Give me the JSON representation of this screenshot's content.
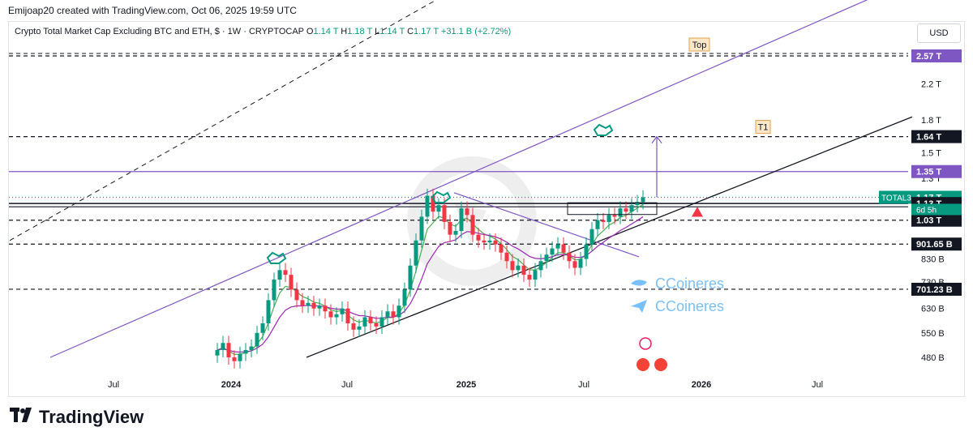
{
  "header": {
    "creator_line": "Emijoap20 created with TradingView.com, Oct 06, 2025 19:59 UTC"
  },
  "legend": {
    "title": "Crypto Total Market Cap Excluding BTC and ETH, $ · 1W · CRYPTOCAP",
    "o_label": "O",
    "o_value": "1.14 T",
    "h_label": "H",
    "h_value": "1.18 T",
    "l_label": "L",
    "l_value": "1.14 T",
    "c_label": "C",
    "c_value": "1.17 T",
    "change": "+31.1 B (+2.72%)"
  },
  "currency": "USD",
  "watermark": {
    "social_1": "CCoineres",
    "social_2": "CCoineres"
  },
  "branding": {
    "logo_text": "TradingView"
  },
  "colors": {
    "up": "#089981",
    "down": "#f23645",
    "channel": "#7e57c2",
    "ema_fast": "#4caf50",
    "ema_slow": "#9c27b0",
    "level": "#131722",
    "label_purple": "#7e57c2",
    "label_black": "#131722",
    "label_green": "#089981"
  },
  "chart_data": {
    "type": "candlestick",
    "symbol": "TOTAL3",
    "timeframe": "1W",
    "y_scale": "log",
    "y_ticks": [
      "2.2 T",
      "1.8 T",
      "1.5 T",
      "1.3 T",
      "830 B",
      "730 B",
      "630 B",
      "550 B",
      "480 B"
    ],
    "x_ticks": [
      "Jul",
      "2024",
      "Jul",
      "2025",
      "Jul",
      "2026",
      "Jul"
    ],
    "price_labels": [
      {
        "text": "2.57 T",
        "value": 2.57,
        "style": "purple"
      },
      {
        "text": "1.64 T",
        "value": 1.64,
        "style": "black"
      },
      {
        "text": "1.35 T",
        "value": 1.35,
        "style": "purple"
      },
      {
        "text": "1.17 T",
        "value": 1.17,
        "style": "green"
      },
      {
        "text": "1.13 T",
        "value": 1.13,
        "style": "black"
      },
      {
        "text": "1.03 T",
        "value": 1.03,
        "style": "black"
      },
      {
        "text": "901.65 B",
        "value": 0.90165,
        "style": "black"
      },
      {
        "text": "701.23 B",
        "value": 0.70123,
        "style": "black"
      }
    ],
    "last_price_tag": {
      "symbol": "TOTAL3",
      "countdown": "6d 5h"
    },
    "horizontal_levels": [
      {
        "value": 2.57,
        "style": "dashed"
      },
      {
        "value": 1.64,
        "style": "dashed"
      },
      {
        "value": 1.35,
        "style": "solid-purple"
      },
      {
        "value": 1.17,
        "style": "dotted-green"
      },
      {
        "value": 1.13,
        "style": "solid-double"
      },
      {
        "value": 1.03,
        "style": "dashed"
      },
      {
        "value": 0.90165,
        "style": "dashed"
      },
      {
        "value": 0.70123,
        "style": "dashed"
      }
    ],
    "annotations": [
      {
        "text": "Top",
        "value": 2.57
      },
      {
        "text": "T1",
        "value": 1.64
      }
    ],
    "candles_close": [
      0.5,
      0.52,
      0.48,
      0.47,
      0.49,
      0.5,
      0.51,
      0.55,
      0.58,
      0.66,
      0.74,
      0.78,
      0.76,
      0.7,
      0.66,
      0.64,
      0.65,
      0.63,
      0.64,
      0.62,
      0.6,
      0.61,
      0.63,
      0.58,
      0.56,
      0.57,
      0.6,
      0.58,
      0.57,
      0.6,
      0.62,
      0.6,
      0.64,
      0.7,
      0.8,
      0.92,
      1.05,
      1.18,
      1.08,
      1.12,
      1.02,
      0.95,
      0.97,
      1.1,
      1.06,
      0.95,
      0.92,
      0.91,
      0.92,
      0.9,
      0.86,
      0.82,
      0.78,
      0.8,
      0.76,
      0.74,
      0.78,
      0.82,
      0.85,
      0.88,
      0.9,
      0.86,
      0.82,
      0.79,
      0.83,
      0.9,
      0.98,
      1.03,
      1.02,
      1.06,
      1.05,
      1.1,
      1.08,
      1.12,
      1.14,
      1.17
    ]
  }
}
